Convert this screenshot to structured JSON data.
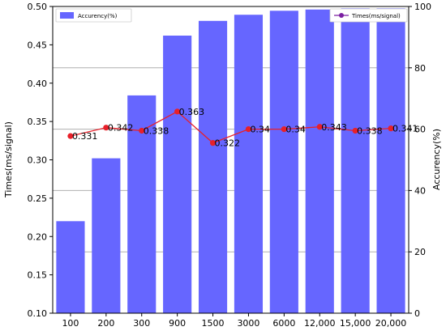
{
  "chart_data": {
    "type": "bar",
    "categories": [
      "100",
      "200",
      "300",
      "900",
      "1500",
      "3000",
      "6000",
      "12,000",
      "15,000",
      "20,000"
    ],
    "series": [
      {
        "name": "Accurency(%)",
        "type": "bar",
        "axis": "right",
        "color": "#6666ff",
        "values": [
          30.0,
          50.5,
          71.0,
          90.5,
          95.3,
          97.3,
          98.6,
          99.0,
          99.4,
          99.4
        ]
      },
      {
        "name": "Times(ms/signal)",
        "type": "line",
        "axis": "left",
        "color": "#e8202a",
        "marker_color": "#e8202a",
        "values": [
          0.331,
          0.342,
          0.338,
          0.363,
          0.322,
          0.34,
          0.34,
          0.343,
          0.338,
          0.341
        ],
        "labels": [
          "0.331",
          "0.342",
          "0.338",
          "0.363",
          "0.322",
          "0.34",
          "0.34",
          "0.343",
          "0.338",
          "0.341"
        ]
      }
    ],
    "ylabel_left": "Times(ms/signal)",
    "ylabel_right": "Accurency(%)",
    "ylim_left": [
      0.1,
      0.5
    ],
    "ylim_right": [
      0,
      100
    ],
    "yticks_left": [
      "0.10",
      "0.15",
      "0.20",
      "0.25",
      "0.30",
      "0.35",
      "0.40",
      "0.45",
      "0.50"
    ],
    "yticks_right": [
      "0",
      "20",
      "40",
      "60",
      "80",
      "100"
    ],
    "grid": "horizontal at right-axis ticks",
    "legend_bar_position": "top-left",
    "legend_line_position": "top-right"
  }
}
